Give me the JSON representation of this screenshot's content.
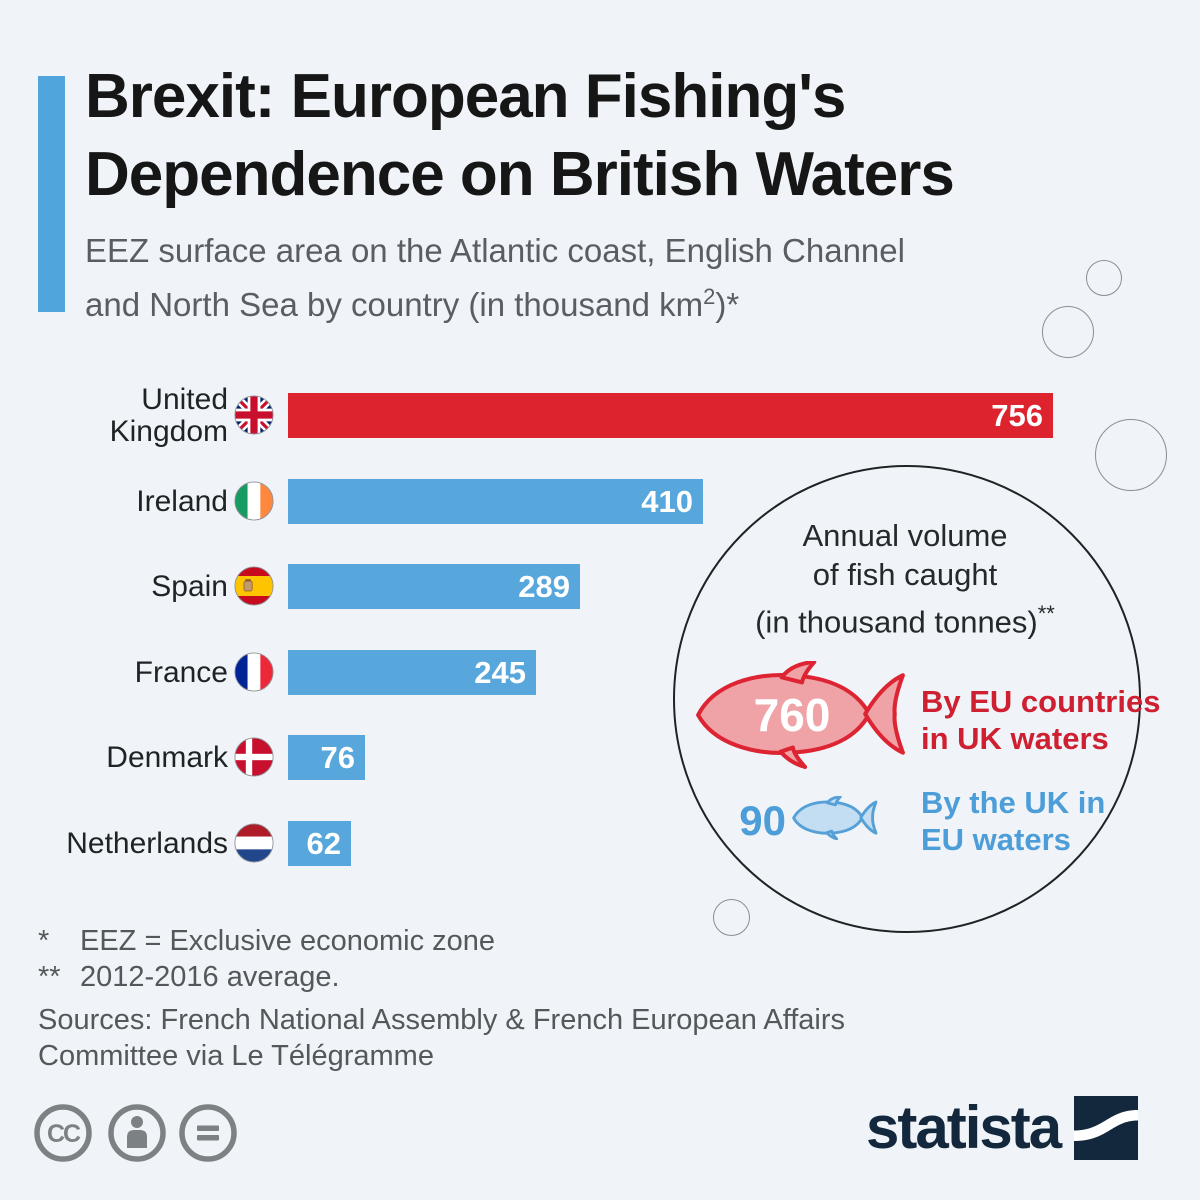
{
  "header": {
    "title_line1": "Brexit: European Fishing's",
    "title_line2": "Dependence on British Waters",
    "subtitle_line1": "EEZ surface area on the Atlantic coast, English Channel",
    "subtitle_line2_pre": "and North Sea by country (in thousand km",
    "subtitle_line2_sup": "2",
    "subtitle_line2_post": ")*"
  },
  "chart_data": {
    "type": "bar",
    "orientation": "horizontal",
    "unit": "thousand km2",
    "categories": [
      "United Kingdom",
      "Ireland",
      "Spain",
      "France",
      "Denmark",
      "Netherlands"
    ],
    "values": [
      756,
      410,
      289,
      245,
      76,
      62
    ],
    "xlim": [
      0,
      780
    ],
    "grid": false,
    "bar_color": "#57A7DC",
    "highlight_color": "#DC232E",
    "highlight_index": 0,
    "value_label_color": "#FFFFFF",
    "flags": [
      "united-kingdom",
      "ireland",
      "spain",
      "france",
      "denmark",
      "netherlands"
    ]
  },
  "annotation": {
    "title_line1": "Annual volume",
    "title_line2": "of fish caught",
    "title_line3_main": "(in thousand tonnes)",
    "title_line3_sup": "**",
    "items": [
      {
        "value": "760",
        "label_line1": "By EU countries",
        "label_line2": "in UK waters",
        "color": "#CE2030",
        "fish_fill": "#F0A3A6",
        "fish_stroke": "#DD2433"
      },
      {
        "value": "90",
        "label_line1": "By the UK in",
        "label_line2": "EU waters",
        "color": "#4D9DD8",
        "fish_fill": "#C3DEF2",
        "fish_stroke": "#55A0D7"
      }
    ]
  },
  "footnotes": {
    "note1_marker": "*",
    "note1_text": "EEZ = Exclusive economic zone",
    "note2_marker": "**",
    "note2_text": "2012-2016 average.",
    "sources_line1": "Sources: French National Assembly & French European Affairs",
    "sources_line2": "Committee via Le Télégramme"
  },
  "branding": {
    "logo_text": "statista",
    "logo_color": "#13283C",
    "license_icons": [
      "cc",
      "by",
      "nd"
    ]
  },
  "colors": {
    "background": "#F0F4F8",
    "accent": "#4FA5DC",
    "text_dark": "#161616",
    "text_gray": "#54585B"
  }
}
